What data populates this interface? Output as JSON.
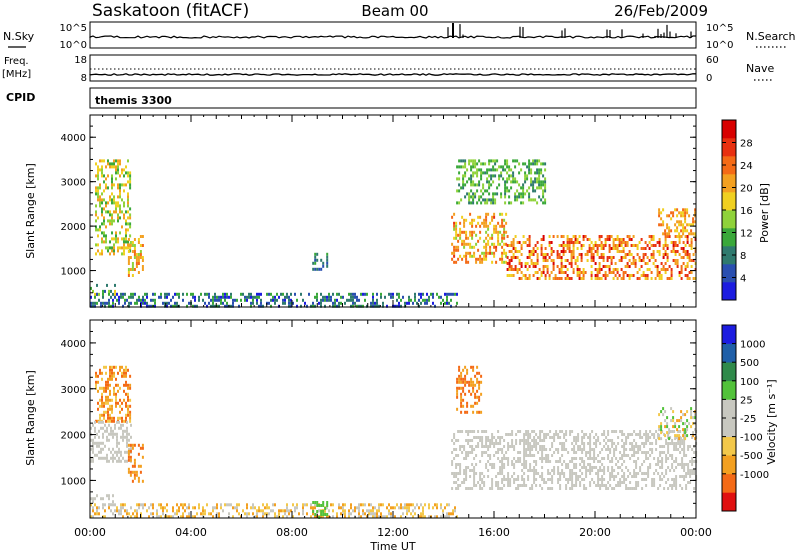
{
  "header": {
    "station": "Saskatoon (fitACF)",
    "beam": "Beam 00",
    "date": "26/Feb/2009"
  },
  "noise_panel": {
    "left_label": "N.Sky",
    "right_label": "N.Search",
    "left_ticks": [
      "10^5",
      "10^0"
    ],
    "right_ticks": [
      "10^5",
      "10^0"
    ]
  },
  "freq_panel": {
    "left_label_top": "Freq.",
    "left_label_bottom": "[MHz]",
    "right_label": "Nave",
    "left_ticks": [
      "18",
      "8"
    ],
    "right_ticks": [
      "60",
      "0"
    ]
  },
  "cpid_panel": {
    "label": "CPID",
    "program": "themis 3300"
  },
  "colors": {
    "power": [
      "#1c1ce0",
      "#2a4fb0",
      "#2f7a6e",
      "#3aa83a",
      "#8fd23a",
      "#f0d020",
      "#f3a020",
      "#f46a16",
      "#e83010",
      "#d80000"
    ],
    "velocity": [
      "#e01010",
      "#f46a16",
      "#f3a020",
      "#f3c84a",
      "#c8c8c0",
      "#c8c8c0",
      "#52c23a",
      "#2f8a4a",
      "#1f5fa8",
      "#1c1ce0"
    ]
  },
  "chart_data": [
    {
      "type": "heatmap",
      "name": "power",
      "ylabel": "Slant Range [km]",
      "yticks": [
        "4000",
        "3000",
        "2000",
        "1000"
      ],
      "ylim": [
        180,
        4500
      ],
      "xlim": [
        0,
        24
      ],
      "xticks": [
        "00:00",
        "04:00",
        "08:00",
        "12:00",
        "16:00",
        "20:00",
        "00:00"
      ],
      "colorbar": {
        "label": "Power [dB]",
        "ticks": [
          "28",
          "24",
          "20",
          "16",
          "12",
          "8",
          "4"
        ],
        "min": 0,
        "max": 32
      },
      "regions": [
        {
          "t": [
            0.2,
            1.6
          ],
          "r": [
            1400,
            3500
          ],
          "v": [
            10,
            22
          ]
        },
        {
          "t": [
            1.5,
            2.1
          ],
          "r": [
            900,
            1800
          ],
          "v": [
            14,
            24
          ]
        },
        {
          "t": [
            0.0,
            1.0
          ],
          "r": [
            450,
            700
          ],
          "v": [
            6,
            20
          ]
        },
        {
          "t": [
            0.0,
            14.5
          ],
          "r": [
            180,
            500
          ],
          "v": [
            2,
            12
          ]
        },
        {
          "t": [
            8.8,
            9.4
          ],
          "r": [
            1000,
            1400
          ],
          "v": [
            4,
            10
          ]
        },
        {
          "t": [
            14.3,
            16.5
          ],
          "r": [
            1200,
            2300
          ],
          "v": [
            14,
            26
          ]
        },
        {
          "t": [
            16.5,
            24.0
          ],
          "r": [
            800,
            1800
          ],
          "v": [
            16,
            30
          ]
        },
        {
          "t": [
            14.5,
            18.0
          ],
          "r": [
            2500,
            3500
          ],
          "v": [
            8,
            16
          ]
        },
        {
          "t": [
            22.5,
            24.0
          ],
          "r": [
            1800,
            2400
          ],
          "v": [
            16,
            24
          ]
        }
      ]
    },
    {
      "type": "heatmap",
      "name": "velocity",
      "ylabel": "Slant Range [km]",
      "yticks": [
        "4000",
        "3000",
        "2000",
        "1000"
      ],
      "ylim": [
        180,
        4500
      ],
      "xlim": [
        0,
        24
      ],
      "xticks": [
        "00:00",
        "04:00",
        "08:00",
        "12:00",
        "16:00",
        "20:00",
        "00:00"
      ],
      "xlabel": "Time UT",
      "colorbar": {
        "label": "Velocity [m s⁻¹]",
        "ticks": [
          "1000",
          "500",
          "100",
          "25",
          "-25",
          "-100",
          "-500",
          "-1000"
        ]
      },
      "regions": [
        {
          "t": [
            0.2,
            1.6
          ],
          "r": [
            2300,
            3500
          ],
          "v": [
            1,
            3
          ]
        },
        {
          "t": [
            0.0,
            1.6
          ],
          "r": [
            1400,
            2300
          ],
          "v": [
            4,
            5
          ]
        },
        {
          "t": [
            1.5,
            2.1
          ],
          "r": [
            900,
            1800
          ],
          "v": [
            1,
            2
          ]
        },
        {
          "t": [
            0.0,
            1.0
          ],
          "r": [
            450,
            700
          ],
          "v": [
            4,
            5
          ]
        },
        {
          "t": [
            0.0,
            14.5
          ],
          "r": [
            180,
            500
          ],
          "v": [
            2,
            4
          ]
        },
        {
          "t": [
            8.8,
            9.4
          ],
          "r": [
            180,
            550
          ],
          "v": [
            6,
            6
          ]
        },
        {
          "t": [
            14.3,
            24.0
          ],
          "r": [
            800,
            2100
          ],
          "v": [
            4,
            5
          ]
        },
        {
          "t": [
            14.5,
            15.5
          ],
          "r": [
            2500,
            3500
          ],
          "v": [
            1,
            2
          ]
        },
        {
          "t": [
            22.5,
            24.0
          ],
          "r": [
            1900,
            2600
          ],
          "v": [
            2,
            6
          ]
        }
      ]
    }
  ]
}
